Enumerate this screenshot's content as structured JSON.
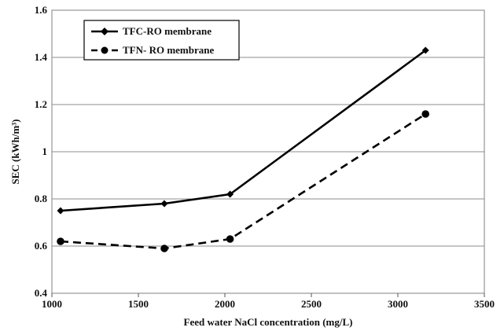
{
  "chart_data": {
    "type": "line",
    "title": "",
    "xlabel": "Feed water NaCl concentration (mg/L)",
    "ylabel": "SEC (kWh/m³)",
    "xlim": [
      1000,
      3500
    ],
    "ylim": [
      0.4,
      1.6
    ],
    "x_ticks": [
      "1000",
      "1500",
      "2000",
      "2500",
      "3000",
      "3500"
    ],
    "y_ticks": [
      "0.4",
      "0.6",
      "0.8",
      "1",
      "1.2",
      "1.4",
      "1.6"
    ],
    "grid": "horizontal",
    "legend_position": "top-left",
    "series": [
      {
        "name": "TFC-RO membrane",
        "marker": "diamond",
        "line_style": "solid",
        "color": "#000000",
        "x": [
          1050,
          1650,
          2030,
          3160
        ],
        "values": [
          0.75,
          0.78,
          0.82,
          1.43
        ]
      },
      {
        "name": "TFN- RO membrane",
        "marker": "circle",
        "line_style": "dashed",
        "color": "#000000",
        "x": [
          1050,
          1650,
          2030,
          3160
        ],
        "values": [
          0.62,
          0.59,
          0.63,
          1.16
        ]
      }
    ]
  }
}
